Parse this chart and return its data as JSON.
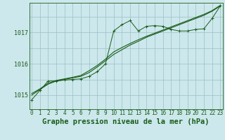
{
  "title": "Graphe pression niveau de la mer (hPa)",
  "background_color": "#cce8ec",
  "grid_color": "#9bbfc4",
  "line_color": "#1a5c1a",
  "x_hours": [
    0,
    1,
    2,
    3,
    4,
    5,
    6,
    7,
    8,
    9,
    10,
    11,
    12,
    13,
    14,
    15,
    16,
    17,
    18,
    19,
    20,
    21,
    22,
    23
  ],
  "line1": [
    1014.85,
    1015.15,
    1015.45,
    1015.45,
    1015.48,
    1015.5,
    1015.52,
    1015.6,
    1015.75,
    1016.0,
    1017.05,
    1017.25,
    1017.38,
    1017.05,
    1017.2,
    1017.22,
    1017.2,
    1017.1,
    1017.05,
    1017.05,
    1017.1,
    1017.12,
    1017.45,
    1017.85
  ],
  "line2": [
    1015.0,
    1015.18,
    1015.35,
    1015.45,
    1015.5,
    1015.55,
    1015.6,
    1015.72,
    1015.9,
    1016.1,
    1016.3,
    1016.45,
    1016.6,
    1016.72,
    1016.85,
    1016.95,
    1017.05,
    1017.15,
    1017.25,
    1017.35,
    1017.45,
    1017.55,
    1017.68,
    1017.85
  ],
  "line3": [
    1015.05,
    1015.2,
    1015.38,
    1015.47,
    1015.52,
    1015.57,
    1015.63,
    1015.78,
    1015.95,
    1016.15,
    1016.38,
    1016.52,
    1016.65,
    1016.77,
    1016.88,
    1016.98,
    1017.08,
    1017.18,
    1017.28,
    1017.38,
    1017.48,
    1017.58,
    1017.7,
    1017.87
  ],
  "ylim": [
    1014.55,
    1017.95
  ],
  "yticks": [
    1015,
    1016,
    1017
  ],
  "ylabel_fontsize": 6,
  "xlabel_fontsize": 5.5,
  "title_fontsize": 7.5,
  "marker_size": 2.5
}
